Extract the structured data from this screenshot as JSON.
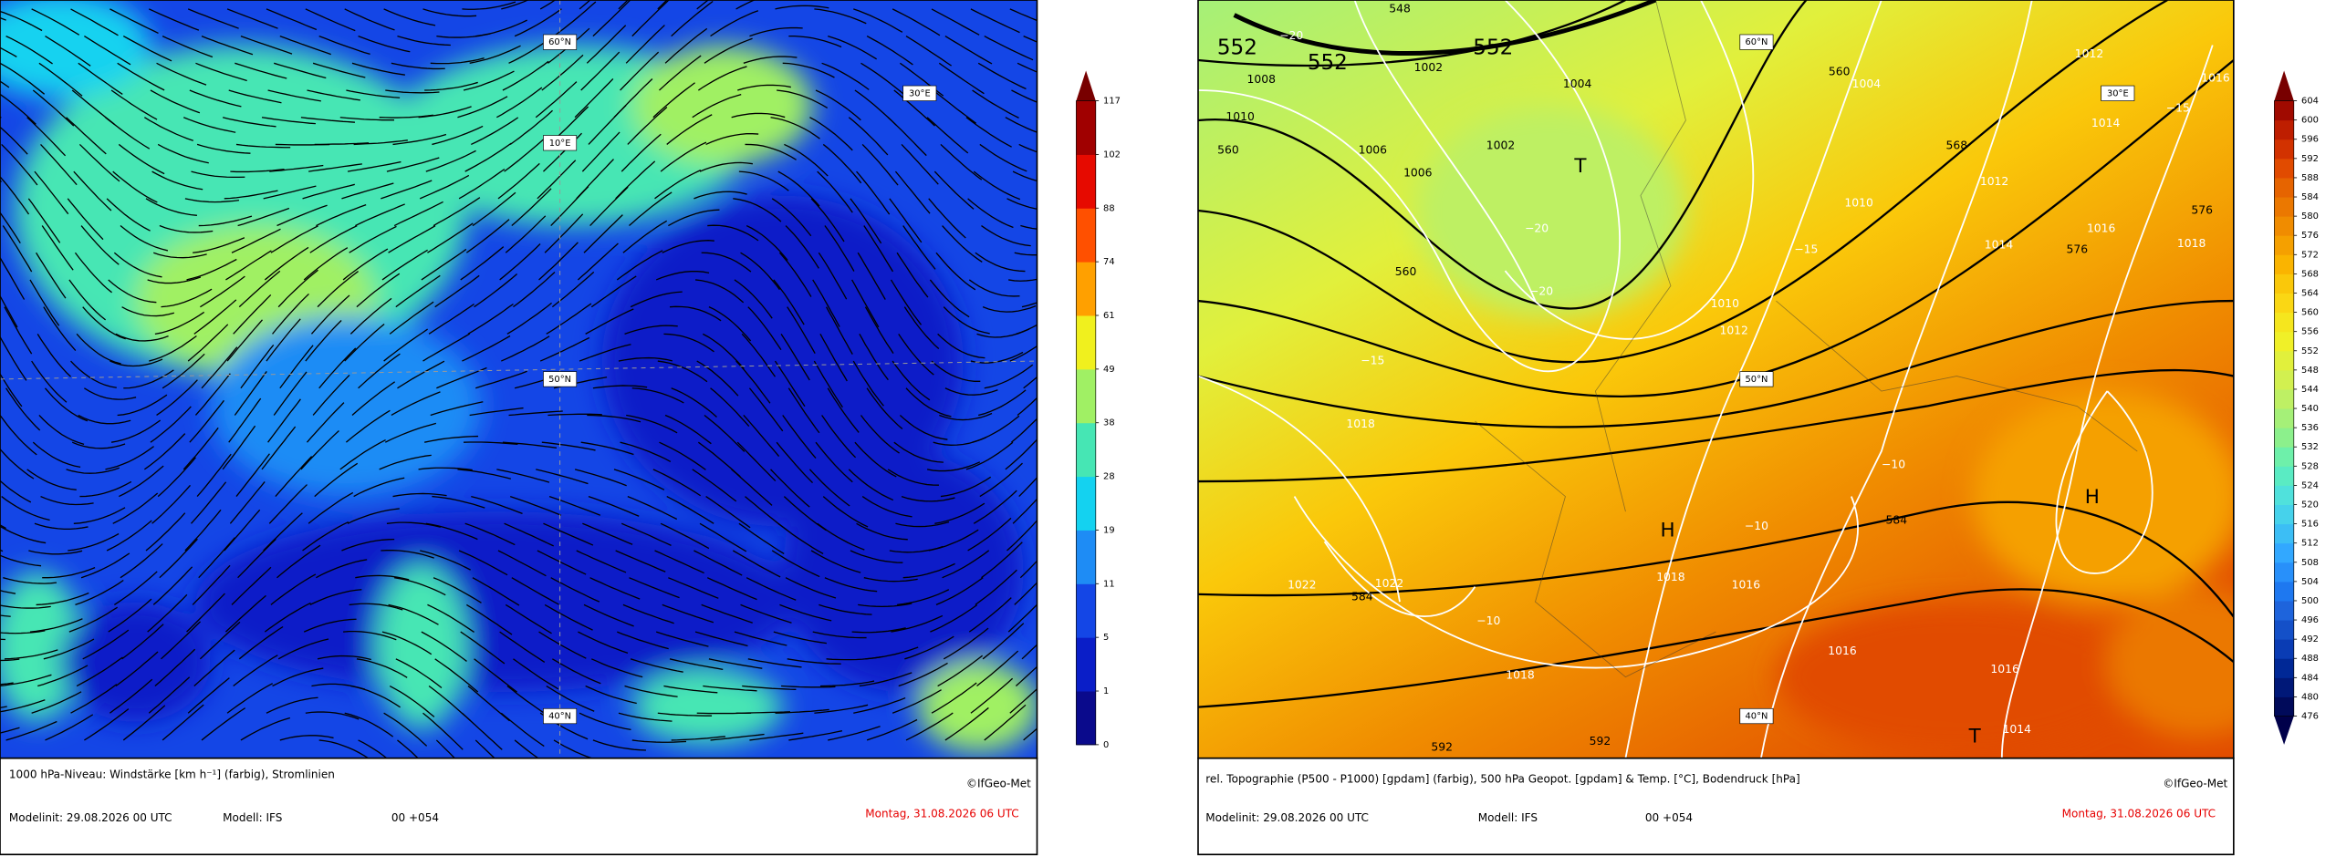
{
  "panels": [
    {
      "map_labels": [
        "60°N",
        "10°E",
        "30°E",
        "50°N",
        "40°N"
      ],
      "footer": {
        "description": "1000 hPa-Niveau: Windstärke [km h⁻¹] (farbig), Stromlinien",
        "copyright": "©IfGeo-Met",
        "model_init": "Modelinit: 29.08.2026 00 UTC",
        "model": "Modell: IFS",
        "run": "00 +054",
        "valid_time": "Montag, 31.08.2026 06 UTC"
      },
      "colorbar": {
        "ticks": [
          0,
          1,
          5,
          11,
          19,
          28,
          38,
          49,
          61,
          74,
          88,
          102,
          117
        ],
        "colors": [
          "#0a0a8c",
          "#0a1ec8",
          "#1446e6",
          "#1e8cf5",
          "#14d2f0",
          "#46e6b4",
          "#a0f064",
          "#f0f01e",
          "#ffa000",
          "#ff5000",
          "#e60a00",
          "#a00000"
        ],
        "extend_top": "#780000"
      }
    },
    {
      "map_labels": [
        "60°N",
        "30°E",
        "50°N",
        "40°N"
      ],
      "pressure_centers": [
        "T",
        "H",
        "H",
        "T"
      ],
      "contour_labels": [
        "552",
        "552",
        "552",
        "1008",
        "1010",
        "560",
        "548",
        "−20",
        "1002",
        "1004",
        "1006",
        "1006",
        "1002",
        "−20",
        "−20",
        "560",
        "−15",
        "1018",
        "1010",
        "1012",
        "1010",
        "568",
        "560",
        "1004",
        "1012",
        "1014",
        "576",
        "1016",
        "1012",
        "1014",
        "−15",
        "1016",
        "576",
        "1018",
        "−15",
        "−10",
        "−10",
        "584",
        "1018",
        "1016",
        "1022",
        "1022",
        "584",
        "−10",
        "1018",
        "1016",
        "1016",
        "1014",
        "592",
        "592"
      ],
      "footer": {
        "description": "rel. Topographie (P500 - P1000) [gpdam] (farbig), 500 hPa Geopot. [gpdam] & Temp. [°C], Bodendruck [hPa]",
        "copyright": "©IfGeo-Met",
        "model_init": "Modelinit: 29.08.2026 00 UTC",
        "model": "Modell: IFS",
        "run": "00 +054",
        "valid_time": "Montag, 31.08.2026 06 UTC"
      },
      "colorbar": {
        "ticks": [
          476,
          480,
          484,
          488,
          492,
          496,
          500,
          504,
          508,
          512,
          516,
          520,
          524,
          528,
          532,
          536,
          540,
          544,
          548,
          552,
          556,
          560,
          564,
          568,
          572,
          576,
          580,
          584,
          588,
          592,
          596,
          600,
          604
        ],
        "colors": [
          "#000a5a",
          "#001878",
          "#002896",
          "#0a3cb4",
          "#1450c8",
          "#1e64dc",
          "#1e78f0",
          "#2890fa",
          "#32a8ff",
          "#3cbef5",
          "#46d2eb",
          "#50e1dc",
          "#5aebc3",
          "#6ef0aa",
          "#8cf08c",
          "#a5f078",
          "#bef064",
          "#d2f050",
          "#e1f03c",
          "#f0f028",
          "#f5e61e",
          "#fad714",
          "#fac80a",
          "#fab400",
          "#f5a000",
          "#f08c00",
          "#eb7800",
          "#e66400",
          "#e14b00",
          "#d23200",
          "#be1e00",
          "#a00a00"
        ],
        "extend_top": "#780000",
        "extend_bottom": "#00004a"
      }
    }
  ]
}
